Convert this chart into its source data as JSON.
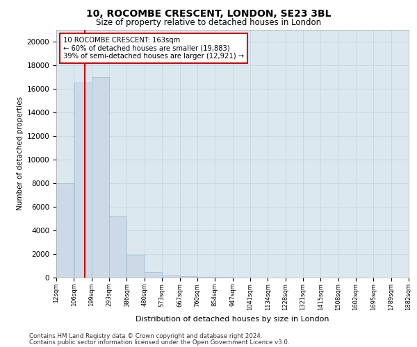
{
  "title_line1": "10, ROCOMBE CRESCENT, LONDON, SE23 3BL",
  "title_line2": "Size of property relative to detached houses in London",
  "xlabel": "Distribution of detached houses by size in London",
  "ylabel": "Number of detached properties",
  "footer_line1": "Contains HM Land Registry data © Crown copyright and database right 2024.",
  "footer_line2": "Contains public sector information licensed under the Open Government Licence v3.0.",
  "annotation_line1": "10 ROCOMBE CRESCENT: 163sqm",
  "annotation_line2": "← 60% of detached houses are smaller (19,883)",
  "annotation_line3": "39% of semi-detached houses are larger (12,921) →",
  "property_size_sqm": 163,
  "bar_left_edges": [
    12,
    106,
    199,
    293,
    386,
    480,
    573,
    667,
    760,
    854,
    947,
    1041,
    1134,
    1228,
    1321,
    1415,
    1508,
    1602,
    1695,
    1789
  ],
  "bar_widths": [
    94,
    93,
    94,
    93,
    94,
    93,
    94,
    93,
    94,
    93,
    94,
    93,
    94,
    93,
    94,
    93,
    94,
    93,
    94,
    93
  ],
  "bar_heights": [
    8000,
    16500,
    17000,
    5200,
    1900,
    480,
    190,
    130,
    80,
    70,
    0,
    0,
    0,
    0,
    0,
    0,
    0,
    0,
    0,
    0
  ],
  "bar_color": "#ccdae8",
  "bar_edgecolor": "#9bbcd0",
  "redline_color": "#cc0000",
  "annotation_box_edgecolor": "#cc0000",
  "annotation_box_facecolor": "#ffffff",
  "grid_color": "#c8d4e0",
  "axes_facecolor": "#dce8f0",
  "tick_labels": [
    "12sqm",
    "106sqm",
    "199sqm",
    "293sqm",
    "386sqm",
    "480sqm",
    "573sqm",
    "667sqm",
    "760sqm",
    "854sqm",
    "947sqm",
    "1041sqm",
    "1134sqm",
    "1228sqm",
    "1321sqm",
    "1415sqm",
    "1508sqm",
    "1602sqm",
    "1695sqm",
    "1789sqm",
    "1882sqm"
  ],
  "ylim": [
    0,
    21000
  ],
  "yticks": [
    0,
    2000,
    4000,
    6000,
    8000,
    10000,
    12000,
    14000,
    16000,
    18000,
    20000
  ],
  "xlim_min": 12,
  "xlim_max": 1882
}
